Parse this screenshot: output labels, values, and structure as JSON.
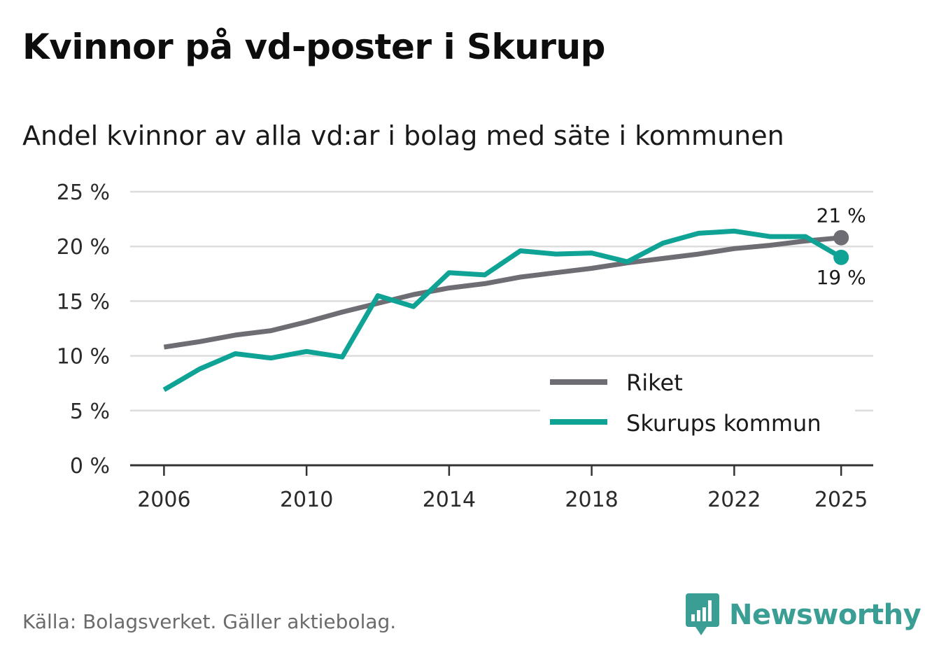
{
  "title": "Kvinnor på vd-poster i Skurup",
  "subtitle": "Andel kvinnor av alla vd:ar i bolag med säte i kommunen",
  "source": "Källa: Bolagsverket. Gäller aktiebolag.",
  "brand": "Newsworthy",
  "colors": {
    "riket": "#6e6d74",
    "skurup": "#0fa396",
    "grid": "#dddddd",
    "axis": "#333333",
    "brand": "#3a9e94"
  },
  "chart_data": {
    "type": "line",
    "title": "Kvinnor på vd-poster i Skurup",
    "subtitle": "Andel kvinnor av alla vd:ar i bolag med säte i kommunen",
    "xlabel": "",
    "ylabel": "",
    "x": [
      2006,
      2007,
      2008,
      2009,
      2010,
      2011,
      2012,
      2013,
      2014,
      2015,
      2016,
      2017,
      2018,
      2019,
      2020,
      2021,
      2022,
      2023,
      2024,
      2025
    ],
    "xlim": [
      2005.05,
      2025.9
    ],
    "ylim": [
      0,
      25
    ],
    "xticks": [
      {
        "value": 2006,
        "label": "2006"
      },
      {
        "value": 2010,
        "label": "2010"
      },
      {
        "value": 2014,
        "label": "2014"
      },
      {
        "value": 2018,
        "label": "2018"
      },
      {
        "value": 2022,
        "label": "2022"
      },
      {
        "value": 2025,
        "label": "2025"
      }
    ],
    "yticks": [
      {
        "value": 0,
        "label": "0 %"
      },
      {
        "value": 5,
        "label": "5 %"
      },
      {
        "value": 10,
        "label": "10 %"
      },
      {
        "value": 15,
        "label": "15 %"
      },
      {
        "value": 20,
        "label": "20 %"
      },
      {
        "value": 25,
        "label": "25 %"
      }
    ],
    "grid": true,
    "legend_position": "bottom-right",
    "series": [
      {
        "name": "Riket",
        "color": "#6e6d74",
        "values": [
          10.8,
          11.3,
          11.9,
          12.3,
          13.1,
          14.0,
          14.8,
          15.6,
          16.2,
          16.6,
          17.2,
          17.6,
          18.0,
          18.5,
          18.9,
          19.3,
          19.8,
          20.1,
          20.5,
          20.8
        ],
        "end_label": "21 %",
        "end_label_position": "above"
      },
      {
        "name": "Skurups kommun",
        "color": "#0fa396",
        "values": [
          6.9,
          8.8,
          10.2,
          9.8,
          10.4,
          9.9,
          15.5,
          14.5,
          17.6,
          17.4,
          19.6,
          19.3,
          19.4,
          18.6,
          20.3,
          21.2,
          21.4,
          20.9,
          20.9,
          19.0
        ],
        "end_label": "19 %",
        "end_label_position": "below"
      }
    ]
  }
}
